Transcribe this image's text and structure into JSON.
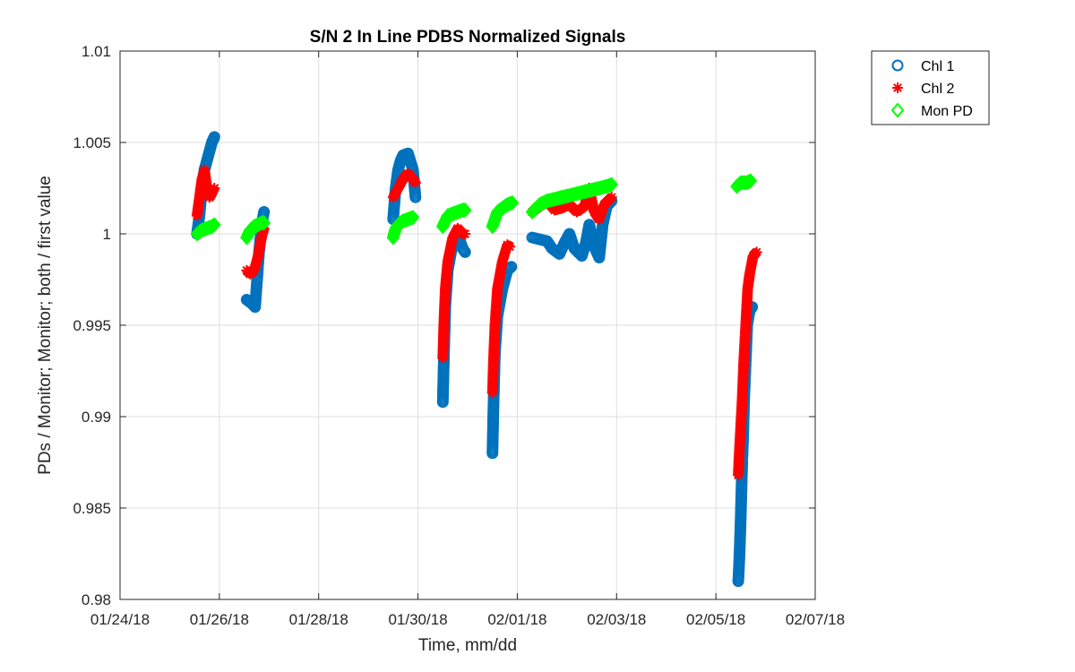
{
  "chart_data": {
    "type": "scatter",
    "title": "S/N 2 In Line PDBS Normalized Signals",
    "xlabel": "Time, mm/dd",
    "ylabel": "PDs / Monitor; Monitor; both / first value",
    "xlim": [
      0,
      14
    ],
    "ylim": [
      0.98,
      1.01
    ],
    "x_unit": "days after 01/24/18",
    "x_ticks": [
      0,
      2,
      4,
      6,
      8,
      10,
      12,
      14
    ],
    "x_tick_labels": [
      "01/24/18",
      "01/26/18",
      "01/28/18",
      "01/30/18",
      "02/01/18",
      "02/03/18",
      "02/05/18",
      "02/07/18"
    ],
    "y_ticks": [
      0.98,
      0.985,
      0.99,
      0.995,
      1.0,
      1.005,
      1.01
    ],
    "y_tick_labels": [
      "0.98",
      "0.985",
      "0.99",
      "0.995",
      "1",
      "1.005",
      "1.01"
    ],
    "grid": true,
    "legend_position": "outside-top-right",
    "series": [
      {
        "name": "Chl 1",
        "marker": "circle",
        "color": "#0072BD",
        "segments": [
          [
            [
              1.55,
              1.0
            ],
            [
              1.6,
              1.001
            ],
            [
              1.65,
              1.0025
            ],
            [
              1.7,
              1.0035
            ],
            [
              1.75,
              1.004
            ],
            [
              1.8,
              1.0045
            ],
            [
              1.85,
              1.005
            ],
            [
              1.9,
              1.0053
            ]
          ],
          [
            [
              2.55,
              0.9964
            ],
            [
              2.65,
              0.9962
            ],
            [
              2.72,
              0.996
            ],
            [
              2.76,
              0.9975
            ],
            [
              2.8,
              0.999
            ],
            [
              2.85,
              1.0005
            ],
            [
              2.9,
              1.0012
            ]
          ],
          [
            [
              5.5,
              1.0008
            ],
            [
              5.55,
              1.0025
            ],
            [
              5.6,
              1.0035
            ],
            [
              5.65,
              1.004
            ],
            [
              5.7,
              1.0043
            ],
            [
              5.8,
              1.0044
            ],
            [
              5.9,
              1.0035
            ],
            [
              5.95,
              1.002
            ]
          ],
          [
            [
              6.5,
              0.9908
            ],
            [
              6.52,
              0.993
            ],
            [
              6.55,
              0.996
            ],
            [
              6.6,
              0.998
            ],
            [
              6.7,
              0.9995
            ],
            [
              6.8,
              1.0
            ],
            [
              6.9,
              0.9992
            ],
            [
              6.95,
              0.999
            ]
          ],
          [
            [
              7.5,
              0.988
            ],
            [
              7.52,
              0.9905
            ],
            [
              7.55,
              0.9935
            ],
            [
              7.6,
              0.9955
            ],
            [
              7.7,
              0.997
            ],
            [
              7.8,
              0.998
            ],
            [
              7.88,
              0.9982
            ]
          ],
          [
            [
              8.3,
              0.9998
            ],
            [
              8.45,
              0.9997
            ],
            [
              8.6,
              0.9996
            ],
            [
              8.7,
              0.9992
            ],
            [
              8.85,
              0.9989
            ],
            [
              8.95,
              0.9995
            ],
            [
              9.05,
              1.0
            ],
            [
              9.15,
              0.9992
            ],
            [
              9.3,
              0.9988
            ],
            [
              9.38,
              0.9995
            ],
            [
              9.45,
              1.0005
            ],
            [
              9.55,
              0.9993
            ],
            [
              9.65,
              0.9987
            ],
            [
              9.72,
              1.0005
            ],
            [
              9.8,
              1.0015
            ],
            [
              9.9,
              1.0018
            ]
          ],
          [
            [
              12.45,
              0.981
            ],
            [
              12.46,
              0.9815
            ],
            [
              12.47,
              0.9821
            ],
            [
              12.48,
              0.9828
            ],
            [
              12.49,
              0.9836
            ],
            [
              12.5,
              0.9845
            ],
            [
              12.51,
              0.9855
            ],
            [
              12.52,
              0.9865
            ],
            [
              12.53,
              0.9875
            ],
            [
              12.55,
              0.989
            ],
            [
              12.57,
              0.991
            ],
            [
              12.6,
              0.993
            ],
            [
              12.63,
              0.995
            ],
            [
              12.68,
              0.9958
            ],
            [
              12.73,
              0.996
            ]
          ]
        ]
      },
      {
        "name": "Chl 2",
        "marker": "asterisk",
        "color": "#FF0000",
        "segments": [
          [
            [
              1.55,
              1.001
            ],
            [
              1.6,
              1.002
            ],
            [
              1.65,
              1.003
            ],
            [
              1.7,
              1.0035
            ],
            [
              1.75,
              1.0025
            ],
            [
              1.8,
              1.002
            ],
            [
              1.85,
              1.0022
            ],
            [
              1.9,
              1.0025
            ]
          ],
          [
            [
              2.55,
              0.998
            ],
            [
              2.62,
              0.9978
            ],
            [
              2.7,
              0.998
            ],
            [
              2.78,
              0.9988
            ],
            [
              2.85,
              0.9998
            ],
            [
              2.9,
              1.0003
            ]
          ],
          [
            [
              5.5,
              1.002
            ],
            [
              5.6,
              1.0025
            ],
            [
              5.7,
              1.003
            ],
            [
              5.8,
              1.0033
            ],
            [
              5.9,
              1.003
            ],
            [
              5.95,
              1.0028
            ]
          ],
          [
            [
              6.5,
              0.9932
            ],
            [
              6.52,
              0.995
            ],
            [
              6.55,
              0.997
            ],
            [
              6.6,
              0.9985
            ],
            [
              6.7,
              0.9998
            ],
            [
              6.8,
              1.0003
            ],
            [
              6.9,
              1.0
            ],
            [
              6.95,
              1.0
            ]
          ],
          [
            [
              7.5,
              0.9913
            ],
            [
              7.52,
              0.993
            ],
            [
              7.55,
              0.995
            ],
            [
              7.6,
              0.997
            ],
            [
              7.7,
              0.9985
            ],
            [
              7.8,
              0.9994
            ],
            [
              7.85,
              0.9993
            ]
          ],
          [
            [
              8.3,
              1.0012
            ],
            [
              8.45,
              1.0015
            ],
            [
              8.6,
              1.0018
            ],
            [
              8.75,
              1.0013
            ],
            [
              8.9,
              1.0014
            ],
            [
              9.05,
              1.0016
            ],
            [
              9.2,
              1.0012
            ],
            [
              9.35,
              1.0015
            ],
            [
              9.45,
              1.0025
            ],
            [
              9.55,
              1.0012
            ],
            [
              9.65,
              1.0008
            ],
            [
              9.75,
              1.0016
            ],
            [
              9.9,
              1.002
            ]
          ],
          [
            [
              12.45,
              0.9868
            ],
            [
              12.47,
              0.988
            ],
            [
              12.5,
              0.9895
            ],
            [
              12.53,
              0.991
            ],
            [
              12.56,
              0.993
            ],
            [
              12.6,
              0.995
            ],
            [
              12.64,
              0.997
            ],
            [
              12.68,
              0.9978
            ],
            [
              12.75,
              0.9988
            ],
            [
              12.82,
              0.999
            ]
          ]
        ]
      },
      {
        "name": "Mon PD",
        "marker": "diamond",
        "color": "#00FF00",
        "segments": [
          [
            [
              1.55,
              1.0
            ],
            [
              1.65,
              1.0002
            ],
            [
              1.75,
              1.0003
            ],
            [
              1.85,
              1.0004
            ],
            [
              1.9,
              1.0005
            ]
          ],
          [
            [
              2.55,
              0.9998
            ],
            [
              2.62,
              1.0002
            ],
            [
              2.7,
              1.0004
            ],
            [
              2.78,
              1.0005
            ],
            [
              2.85,
              1.0006
            ],
            [
              2.9,
              1.0006
            ]
          ],
          [
            [
              5.5,
              0.9998
            ],
            [
              5.55,
              1.0003
            ],
            [
              5.6,
              1.0005
            ],
            [
              5.7,
              1.0007
            ],
            [
              5.8,
              1.0008
            ],
            [
              5.9,
              1.0009
            ]
          ],
          [
            [
              6.5,
              1.0004
            ],
            [
              6.55,
              1.0007
            ],
            [
              6.6,
              1.001
            ],
            [
              6.7,
              1.0011
            ],
            [
              6.8,
              1.0012
            ],
            [
              6.9,
              1.0013
            ],
            [
              6.95,
              1.0013
            ]
          ],
          [
            [
              7.5,
              1.0004
            ],
            [
              7.55,
              1.0008
            ],
            [
              7.6,
              1.0012
            ],
            [
              7.7,
              1.0014
            ],
            [
              7.8,
              1.0016
            ],
            [
              7.9,
              1.0017
            ]
          ],
          [
            [
              8.3,
              1.0012
            ],
            [
              8.45,
              1.0016
            ],
            [
              8.6,
              1.0018
            ],
            [
              8.75,
              1.0019
            ],
            [
              8.9,
              1.002
            ],
            [
              9.05,
              1.0021
            ],
            [
              9.2,
              1.0022
            ],
            [
              9.35,
              1.0023
            ],
            [
              9.5,
              1.0024
            ],
            [
              9.65,
              1.0025
            ],
            [
              9.8,
              1.0026
            ],
            [
              9.9,
              1.0027
            ]
          ],
          [
            [
              12.42,
              1.0026
            ],
            [
              12.5,
              1.0028
            ],
            [
              12.62,
              1.0028
            ],
            [
              12.7,
              1.0029
            ]
          ]
        ]
      }
    ]
  }
}
